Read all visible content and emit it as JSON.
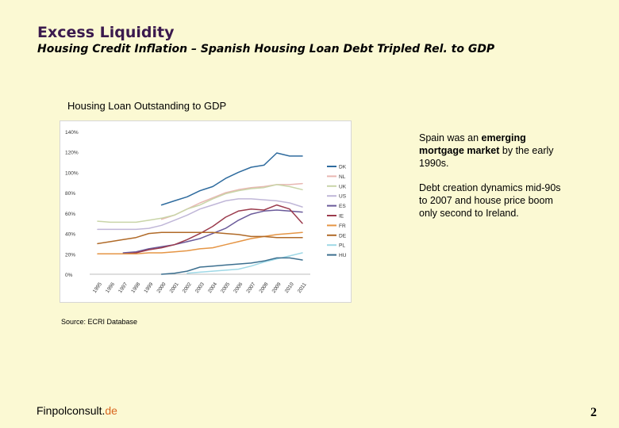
{
  "slide": {
    "title": "Excess Liquidity",
    "subtitle": "Housing Credit Inflation – Spanish Housing Loan Debt Tripled Rel. to GDP",
    "chart_heading": "Housing Loan Outstanding to GDP",
    "source": "Source: ECRI Database",
    "note1_a": "Spain was an ",
    "note1_b": "emerging mortgage market",
    "note1_c": " by the early 1990s.",
    "note2": "Debt creation dynamics mid-90s to 2007 and house price boom only second to Ireland.",
    "brand_main": "Finpolconsult.",
    "brand_accent": "de",
    "page_number": "2"
  },
  "chart_data": {
    "type": "line",
    "title": "",
    "xlabel": "",
    "ylabel": "",
    "x": [
      "1995",
      "1996",
      "1997",
      "1998",
      "1999",
      "2000",
      "2001",
      "2002",
      "2003",
      "2004",
      "2005",
      "2006",
      "2007",
      "2008",
      "2009",
      "2010",
      "2011"
    ],
    "y_ticks": [
      "0%",
      "20%",
      "40%",
      "60%",
      "80%",
      "100%",
      "120%",
      "140%"
    ],
    "ylim": [
      0,
      140
    ],
    "grid": false,
    "legend_position": "right",
    "series": [
      {
        "name": "DK",
        "color": "#2e6b9e",
        "values": [
          null,
          null,
          null,
          null,
          null,
          68,
          72,
          76,
          82,
          86,
          94,
          100,
          105,
          107,
          119,
          116,
          116
        ]
      },
      {
        "name": "NL",
        "color": "#e8b7b2",
        "values": [
          null,
          null,
          null,
          null,
          null,
          54,
          58,
          64,
          70,
          75,
          80,
          83,
          85,
          86,
          88,
          88,
          89
        ]
      },
      {
        "name": "UK",
        "color": "#c9d5a8",
        "values": [
          52,
          51,
          51,
          51,
          53,
          55,
          58,
          64,
          68,
          74,
          79,
          82,
          84,
          85,
          88,
          86,
          83
        ]
      },
      {
        "name": "US",
        "color": "#c0b7d8",
        "values": [
          44,
          44,
          44,
          44,
          45,
          48,
          53,
          58,
          64,
          68,
          72,
          74,
          74,
          73,
          72,
          70,
          66
        ]
      },
      {
        "name": "ES",
        "color": "#6a5a9a",
        "values": [
          null,
          null,
          21,
          22,
          25,
          27,
          29,
          32,
          35,
          40,
          45,
          53,
          59,
          62,
          63,
          62,
          61
        ]
      },
      {
        "name": "IE",
        "color": "#9b3b4d",
        "values": [
          null,
          null,
          20,
          21,
          24,
          26,
          29,
          34,
          40,
          47,
          56,
          62,
          64,
          63,
          68,
          64,
          50
        ]
      },
      {
        "name": "FR",
        "color": "#e59545",
        "values": [
          20,
          20,
          20,
          20,
          21,
          21,
          22,
          23,
          25,
          26,
          29,
          32,
          35,
          37,
          39,
          40,
          41
        ]
      },
      {
        "name": "DE",
        "color": "#b06a28",
        "values": [
          30,
          32,
          34,
          36,
          40,
          41,
          41,
          41,
          41,
          41,
          40,
          39,
          37,
          37,
          36,
          36,
          36
        ]
      },
      {
        "name": "PL",
        "color": "#9ed8e6",
        "values": [
          null,
          null,
          null,
          null,
          null,
          null,
          null,
          1,
          2,
          3,
          4,
          5,
          8,
          12,
          15,
          18,
          21
        ]
      },
      {
        "name": "HU",
        "color": "#3c6f8f",
        "values": [
          null,
          null,
          null,
          null,
          null,
          0,
          1,
          3,
          7,
          8,
          9,
          10,
          11,
          13,
          16,
          16,
          14
        ]
      }
    ]
  }
}
